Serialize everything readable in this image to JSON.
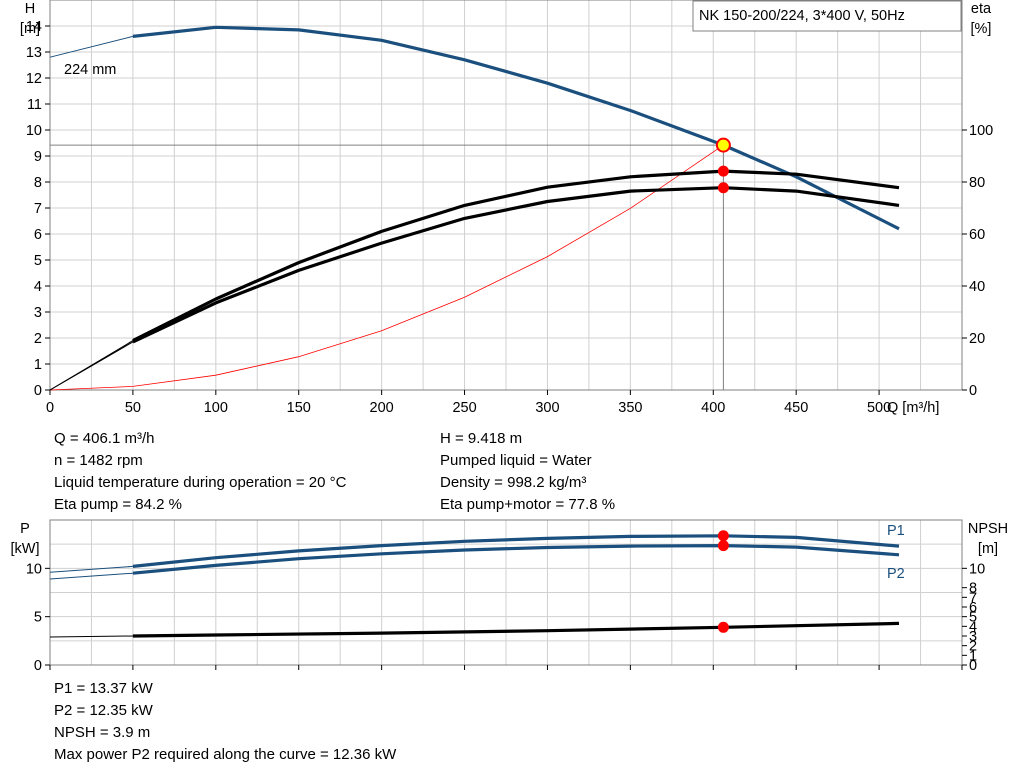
{
  "chart_data": [
    {
      "type": "line",
      "title": "NK 150-200/224, 3*400 V, 50Hz",
      "xlabel": "Q [m³/h]",
      "ylabel": "H\n[m]",
      "y2label": "eta\n[%]",
      "xlim": [
        0,
        550
      ],
      "ylim": [
        0,
        15
      ],
      "y2lim": [
        0,
        150
      ],
      "x_ticks": [
        0,
        50,
        100,
        150,
        200,
        250,
        300,
        350,
        400,
        450,
        500
      ],
      "y_ticks": [
        0,
        1,
        2,
        3,
        4,
        5,
        6,
        7,
        8,
        9,
        10,
        11,
        12,
        13,
        14
      ],
      "y2_ticks": [
        0,
        20,
        40,
        60,
        80,
        100
      ],
      "grid": true,
      "annotation": "224 mm",
      "series": [
        {
          "axis": "H",
          "color": "#1a4f7e",
          "x": [
            0,
            50,
            100,
            150,
            200,
            250,
            300,
            350,
            406.1,
            450,
            512
          ],
          "y": [
            12.8,
            13.6,
            13.95,
            13.85,
            13.45,
            12.7,
            11.8,
            10.75,
            9.418,
            8.2,
            6.2
          ]
        },
        {
          "axis": "H",
          "color": "#ff0000",
          "note": "system curve",
          "x": [
            0,
            50,
            100,
            150,
            200,
            250,
            300,
            350,
            406.1
          ],
          "y": [
            0,
            0.14,
            0.57,
            1.28,
            2.28,
            3.57,
            5.13,
            6.99,
            9.418
          ]
        },
        {
          "axis": "eta",
          "color": "#000000",
          "x": [
            0,
            50,
            100,
            150,
            200,
            250,
            300,
            350,
            406.1,
            450,
            512
          ],
          "y": [
            0,
            19,
            35,
            49,
            61,
            71,
            78,
            82,
            84.2,
            83,
            77.8
          ]
        },
        {
          "axis": "eta",
          "color": "#000000",
          "x": [
            0,
            50,
            100,
            150,
            200,
            250,
            300,
            350,
            406.1,
            450,
            512
          ],
          "y": [
            0,
            18.5,
            33.5,
            46,
            56.5,
            66,
            72.5,
            76.5,
            77.8,
            76.5,
            71
          ]
        }
      ],
      "markers": [
        {
          "axis": "H",
          "x": 406.1,
          "y": 9.418,
          "style": "duty"
        },
        {
          "axis": "eta",
          "x": 406.1,
          "y": 84.2,
          "style": "dot"
        },
        {
          "axis": "eta",
          "x": 406.1,
          "y": 77.8,
          "style": "dot"
        }
      ],
      "crosshair": {
        "x": 406.1,
        "y": 9.418
      }
    },
    {
      "type": "line",
      "ylabel": "P\n[kW]",
      "y2label": "NPSH\n[m]",
      "xlim": [
        0,
        550
      ],
      "ylim": [
        0,
        15
      ],
      "y2lim": [
        0,
        15
      ],
      "y_ticks": [
        0,
        5,
        10
      ],
      "y2_ticks": [
        0,
        1,
        2,
        3,
        4,
        5,
        6,
        7,
        8,
        10
      ],
      "grid": true,
      "series": [
        {
          "name": "P1",
          "axis": "P",
          "color": "#1a4f7e",
          "x": [
            0,
            50,
            100,
            150,
            200,
            250,
            300,
            350,
            406.1,
            450,
            512
          ],
          "y": [
            9.6,
            10.2,
            11.1,
            11.8,
            12.35,
            12.8,
            13.1,
            13.3,
            13.37,
            13.2,
            12.3
          ]
        },
        {
          "name": "P2",
          "axis": "P",
          "color": "#1a4f7e",
          "x": [
            0,
            50,
            100,
            150,
            200,
            250,
            300,
            350,
            406.1,
            450,
            512
          ],
          "y": [
            8.9,
            9.5,
            10.3,
            11.0,
            11.5,
            11.9,
            12.15,
            12.3,
            12.35,
            12.2,
            11.4
          ]
        },
        {
          "axis": "NPSH",
          "color": "#000000",
          "x": [
            0,
            50,
            100,
            200,
            300,
            406.1,
            512
          ],
          "y": [
            2.9,
            3.0,
            3.1,
            3.3,
            3.55,
            3.9,
            4.3
          ]
        }
      ],
      "markers": [
        {
          "axis": "P",
          "x": 406.1,
          "y": 13.37,
          "style": "dot"
        },
        {
          "axis": "P",
          "x": 406.1,
          "y": 12.35,
          "style": "dot"
        },
        {
          "axis": "NPSH",
          "x": 406.1,
          "y": 3.9,
          "style": "dot"
        }
      ]
    }
  ],
  "info": {
    "left": [
      "Q = 406.1 m³/h",
      "n = 1482 rpm",
      "Liquid temperature during operation = 20 °C",
      "Eta pump = 84.2 %"
    ],
    "right": [
      "H = 9.418 m",
      "Pumped liquid = Water",
      "Density = 998.2 kg/m³",
      "Eta pump+motor = 77.8 %"
    ]
  },
  "power_info": [
    "P1 = 13.37 kW",
    "P2 = 12.35 kW",
    "NPSH = 3.9 m",
    "Max power P2 required along the curve = 12.36 kW"
  ]
}
